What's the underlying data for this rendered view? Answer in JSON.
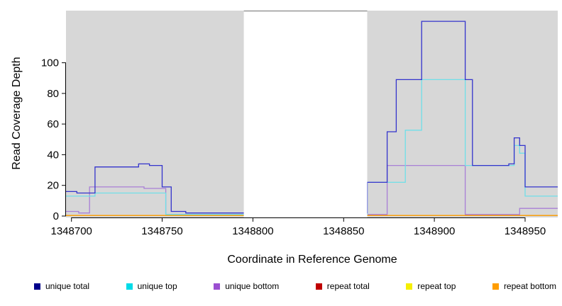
{
  "chart_data": {
    "type": "line",
    "subtype": "step-coverage",
    "title": "",
    "xlabel": "Coordinate in Reference Genome",
    "ylabel": "Read Coverage Depth",
    "xlim": [
      1348697,
      1348968
    ],
    "ylim": [
      0,
      134
    ],
    "x_ticks": [
      1348700,
      1348750,
      1348800,
      1348850,
      1348900,
      1348950
    ],
    "y_ticks": [
      0,
      20,
      40,
      60,
      80,
      100
    ],
    "grid": false,
    "panel_bg": "#d7d7d7",
    "gap_region": {
      "x_start": 1348795,
      "x_end": 1348863,
      "color": "#ffffff"
    },
    "series": [
      {
        "name": "repeat total",
        "color": "#c00000",
        "points": [
          [
            1348697,
            0.4
          ],
          [
            1348968,
            0.4
          ]
        ]
      },
      {
        "name": "repeat top",
        "color": "#f2e40e",
        "points": [
          [
            1348697,
            0.4
          ],
          [
            1348968,
            0.4
          ]
        ]
      },
      {
        "name": "repeat bottom",
        "color": "#ff9d00",
        "points": [
          [
            1348697,
            0.4
          ],
          [
            1348968,
            0.4
          ]
        ]
      },
      {
        "name": "unique bottom",
        "color": "#a87fd6",
        "points": [
          [
            1348697,
            3
          ],
          [
            1348704,
            2
          ],
          [
            1348710,
            19
          ],
          [
            1348740,
            18
          ],
          [
            1348752,
            1
          ],
          [
            1348863,
            1
          ],
          [
            1348874,
            33
          ],
          [
            1348917,
            1
          ],
          [
            1348947,
            5
          ],
          [
            1348968,
            5
          ]
        ]
      },
      {
        "name": "unique top",
        "color": "#6fdfe8",
        "points": [
          [
            1348697,
            13
          ],
          [
            1348713,
            15
          ],
          [
            1348752,
            1
          ],
          [
            1348863,
            22
          ],
          [
            1348884,
            56
          ],
          [
            1348893,
            89
          ],
          [
            1348917,
            33
          ],
          [
            1348944,
            46
          ],
          [
            1348947,
            41
          ],
          [
            1348950,
            13
          ],
          [
            1348968,
            13
          ]
        ]
      },
      {
        "name": "unique total",
        "color": "#3333cc",
        "points": [
          [
            1348697,
            16
          ],
          [
            1348703,
            15
          ],
          [
            1348713,
            32
          ],
          [
            1348737,
            34
          ],
          [
            1348743,
            33
          ],
          [
            1348750,
            19
          ],
          [
            1348755,
            3
          ],
          [
            1348763,
            2
          ],
          [
            1348863,
            22
          ],
          [
            1348874,
            55
          ],
          [
            1348879,
            89
          ],
          [
            1348893,
            127
          ],
          [
            1348917,
            89
          ],
          [
            1348921,
            33
          ],
          [
            1348941,
            34
          ],
          [
            1348944,
            51
          ],
          [
            1348947,
            46
          ],
          [
            1348950,
            19
          ],
          [
            1348968,
            19
          ]
        ]
      }
    ],
    "legend_position": "bottom",
    "legend": [
      {
        "label": "unique total",
        "color": "#00008b"
      },
      {
        "label": "unique top",
        "color": "#00dbe8"
      },
      {
        "label": "unique bottom",
        "color": "#9b4fd1"
      },
      {
        "label": "repeat total",
        "color": "#c00000"
      },
      {
        "label": "repeat top",
        "color": "#f5ef00"
      },
      {
        "label": "repeat bottom",
        "color": "#ff9d00"
      }
    ]
  }
}
